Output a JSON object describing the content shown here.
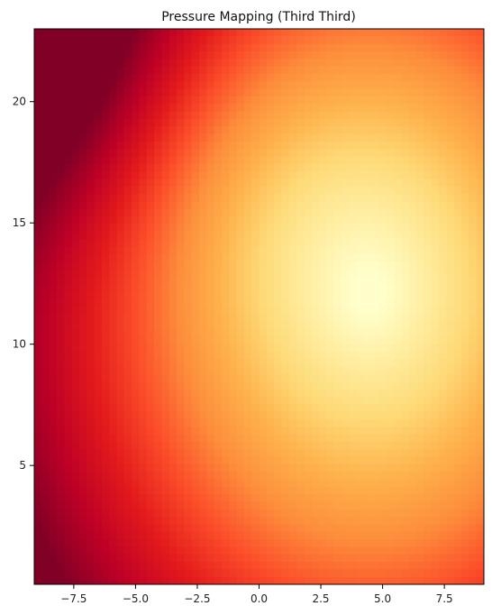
{
  "chart_data": {
    "type": "heatmap",
    "title": "Pressure Mapping (Third Third)",
    "xlabel": "",
    "ylabel": "",
    "xlim": [
      -9.1,
      9.1
    ],
    "ylim": [
      0.1,
      23.0
    ],
    "x_ticks": [
      -7.5,
      -5.0,
      -2.5,
      0.0,
      2.5,
      5.0,
      7.5
    ],
    "x_tick_labels": [
      "−7.5",
      "−5.0",
      "−2.5",
      "0.0",
      "2.5",
      "5.0",
      "7.5"
    ],
    "y_ticks": [
      5,
      10,
      15,
      20
    ],
    "y_tick_labels": [
      "5",
      "10",
      "15",
      "20"
    ],
    "colormap": "YlOrRd (reversed: light = high, dark red = low)",
    "color_stops": [
      "#800026",
      "#bd0026",
      "#e31a1c",
      "#fc4e2a",
      "#fd8d3c",
      "#feb24c",
      "#fed976",
      "#ffeda0",
      "#ffffcc"
    ],
    "peak": {
      "x": 4.5,
      "y": 12.0
    },
    "lowest_region": "top-left corner",
    "grid": false,
    "colorbar": false
  }
}
